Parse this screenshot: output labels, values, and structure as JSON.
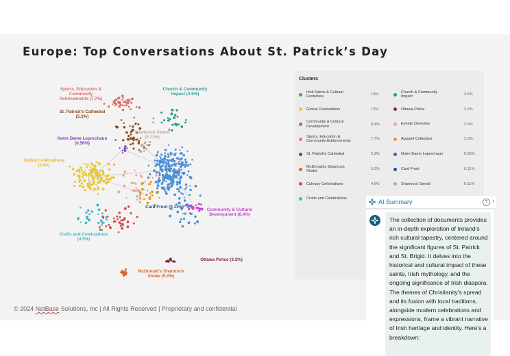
{
  "slide": {
    "title": "Europe: Top Conversations About St. Patrick’s Day",
    "footer_pre": "© 2024 ",
    "footer_brand": "NetBase",
    "footer_post": " Solutions, Inc | All Rights Reserved | Proprietary and confidential"
  },
  "graph": {
    "labels": [
      {
        "line1": "Sports, Education &",
        "line2": "Community",
        "line3": "Achievements (7.7%)",
        "color": "#e06b6b"
      },
      {
        "line1": "Church & Community",
        "line2": "Impact (3.5%)",
        "color": "#2a9a8a"
      },
      {
        "line1": "St. Patrick's Cathedral",
        "line2": "(5.3%)",
        "color": "#8a4a1a"
      },
      {
        "line1": "Shamrock Sword",
        "line2": "(0.11%)",
        "color": "#b8a898"
      },
      {
        "line1": "Notre Dame Leprechaun",
        "line2": "(0.56%)",
        "color": "#7b3fb5"
      },
      {
        "line1": "Global Celebrations",
        "line2": "(13%)",
        "color": "#e8b820"
      },
      {
        "line1": "Card Front (0.11%)",
        "color": "#1a55a0"
      },
      {
        "line1": "Community & Cultural",
        "line2": "Development (8.4%)",
        "color": "#c04ac8"
      },
      {
        "line1": "Crafts and Celebrations",
        "line2": "(4.5%)",
        "color": "#3fb5c8"
      },
      {
        "line1": "Ottawa Police (3.2%)",
        "color": "#7a2a3a"
      },
      {
        "line1": "McDonald's Shamrock",
        "line2": "Shake (5.0%)",
        "color": "#d06a2a"
      }
    ]
  },
  "clusters": {
    "title": "Clusters",
    "items": [
      {
        "name": "Irish Saints & Cultural Festivities",
        "pct": "14%",
        "color": "#4a90d9"
      },
      {
        "name": "Global Celebrations",
        "pct": "13%",
        "color": "#e8c83a"
      },
      {
        "name": "Community & Cultural Development",
        "pct": "8.4%",
        "color": "#c04ac8"
      },
      {
        "name": "Sports, Education & Community Achievements",
        "pct": "7.7%",
        "color": "#e07a6a"
      },
      {
        "name": "St. Patrick's Cathedral",
        "pct": "5.3%",
        "color": "#8a4a1a"
      },
      {
        "name": "McDonald's Shamrock Shake",
        "pct": "5.0%",
        "color": "#d06a2a"
      },
      {
        "name": "Culinary Celebrations",
        "pct": "4.6%",
        "color": "#d94a4a"
      },
      {
        "name": "Crafts and Celebrations",
        "pct": "4.5%",
        "color": "#3fb5c8"
      },
      {
        "name": "Church & Community Impact",
        "pct": "3.5%",
        "color": "#2a9a8a"
      },
      {
        "name": "Ottawa Police",
        "pct": "3.2%",
        "color": "#7a2a3a"
      },
      {
        "name": "Events Overview",
        "pct": "2.9%",
        "color": "#e8a0a0"
      },
      {
        "name": "Apparel Collection",
        "pct": "2.0%",
        "color": "#e0a020"
      },
      {
        "name": "Notre Dame Leprechaun",
        "pct": "0.56%",
        "color": "#7b3fb5"
      },
      {
        "name": "Card Front",
        "pct": "0.11%",
        "color": "#1a55a0"
      },
      {
        "name": "Shamrock Sword",
        "pct": "0.11%",
        "color": "#b8a898"
      }
    ]
  },
  "ai_summary": {
    "title": "AI Summary",
    "help": "?",
    "text": "The collection of documents provides an in-depth exploration of Ireland's rich cultural tapestry, centered around the significant figures of St. Patrick and St. Brigid. It delves into the historical and cultural impact of these saints, Irish mythology, and the ongoing significance of Irish diaspora. The themes of Christianity's spread and its fusion with local traditions, alongside modern celebrations and expressions, frame a vibrant narrative of Irish heritage and identity. Here's a breakdown:"
  }
}
